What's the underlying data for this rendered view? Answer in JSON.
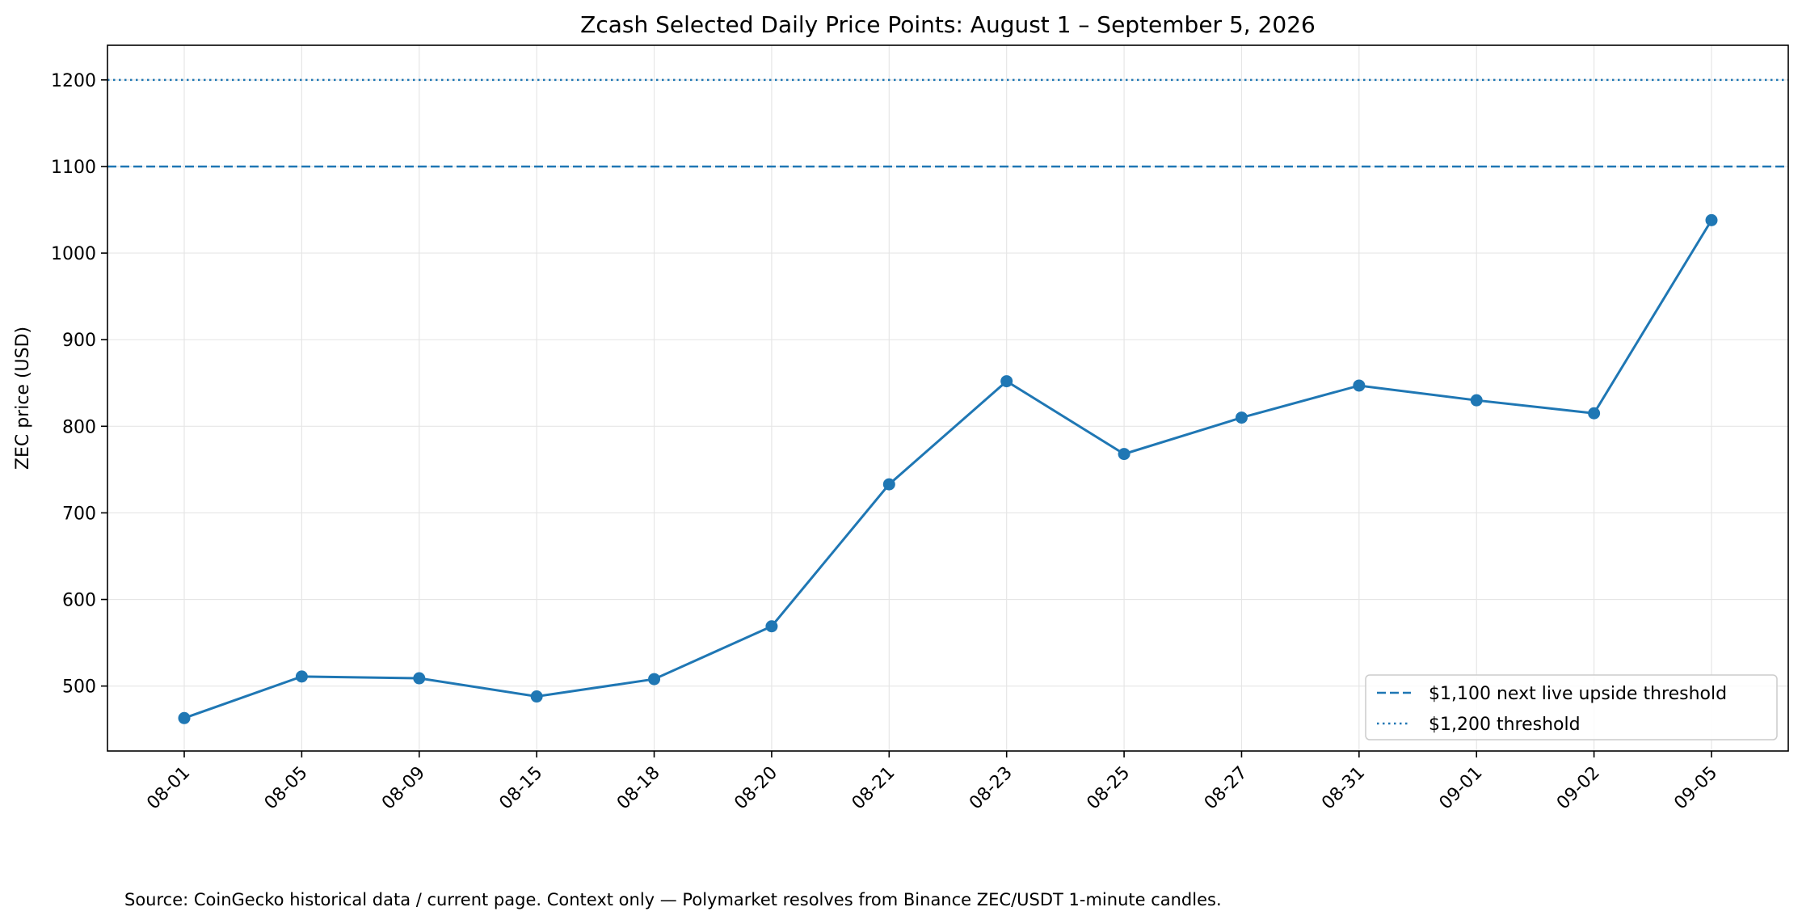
{
  "chart_data": {
    "type": "line",
    "title": "Zcash Selected Daily Price Points: August 1 – September 5, 2026",
    "xlabel": "",
    "ylabel": "ZEC price (USD)",
    "categories": [
      "08-01",
      "08-05",
      "08-09",
      "08-15",
      "08-18",
      "08-20",
      "08-21",
      "08-23",
      "08-25",
      "08-27",
      "08-31",
      "09-01",
      "09-02",
      "09-05"
    ],
    "series": [
      {
        "values": [
          463,
          511,
          509,
          488,
          508,
          569,
          733,
          852,
          768,
          810,
          847,
          830,
          815,
          1038
        ]
      }
    ],
    "ylim": [
      425,
      1240
    ],
    "yticks": [
      500,
      600,
      700,
      800,
      900,
      1000,
      1100,
      1200
    ],
    "grid": true,
    "reference_lines": [
      {
        "value": 1100,
        "style": "dashed",
        "label": "$1,100 next live upside threshold"
      },
      {
        "value": 1200,
        "style": "dotted",
        "label": "$1,200 threshold"
      }
    ],
    "legend_position": "bottom-right",
    "colors": {
      "series": "#1f77b4",
      "reference": "#1f77b4",
      "grid": "#e6e6e6"
    },
    "source_note": "Source: CoinGecko historical data / current page. Context only — Polymarket resolves from Binance ZEC/USDT 1-minute candles."
  }
}
